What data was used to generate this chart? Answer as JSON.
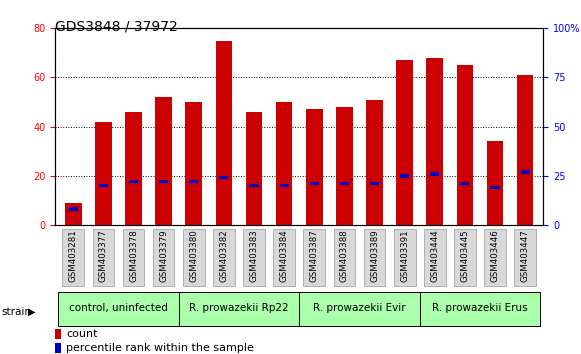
{
  "title": "GDS3848 / 37972",
  "samples": [
    "GSM403281",
    "GSM403377",
    "GSM403378",
    "GSM403379",
    "GSM403380",
    "GSM403382",
    "GSM403383",
    "GSM403384",
    "GSM403387",
    "GSM403388",
    "GSM403389",
    "GSM403391",
    "GSM403444",
    "GSM403445",
    "GSM403446",
    "GSM403447"
  ],
  "counts": [
    9,
    42,
    46,
    52,
    50,
    75,
    46,
    50,
    47,
    48,
    51,
    67,
    68,
    65,
    34,
    61
  ],
  "percentile_ranks": [
    8,
    20,
    22,
    22,
    22,
    24,
    20,
    20,
    21,
    21,
    21,
    25,
    26,
    21,
    19,
    27
  ],
  "groups": [
    {
      "label": "control, uninfected",
      "start": 0,
      "end": 3
    },
    {
      "label": "R. prowazekii Rp22",
      "start": 4,
      "end": 7
    },
    {
      "label": "R. prowazekii Evir",
      "start": 8,
      "end": 11
    },
    {
      "label": "R. prowazekii Erus",
      "start": 12,
      "end": 15
    }
  ],
  "left_ylim": [
    0,
    80
  ],
  "right_ylim": [
    0,
    100
  ],
  "left_yticks": [
    0,
    20,
    40,
    60,
    80
  ],
  "right_yticks": [
    0,
    25,
    50,
    75,
    100
  ],
  "bar_color": "#cc0000",
  "marker_color": "#0000cc",
  "group_color": "#aaffaa",
  "bar_width": 0.55,
  "bg_color": "#ffffff",
  "legend_count_label": "count",
  "legend_pct_label": "percentile rank within the sample",
  "title_fontsize": 10,
  "tick_fontsize": 7,
  "group_fontsize": 7.5,
  "legend_fontsize": 8
}
